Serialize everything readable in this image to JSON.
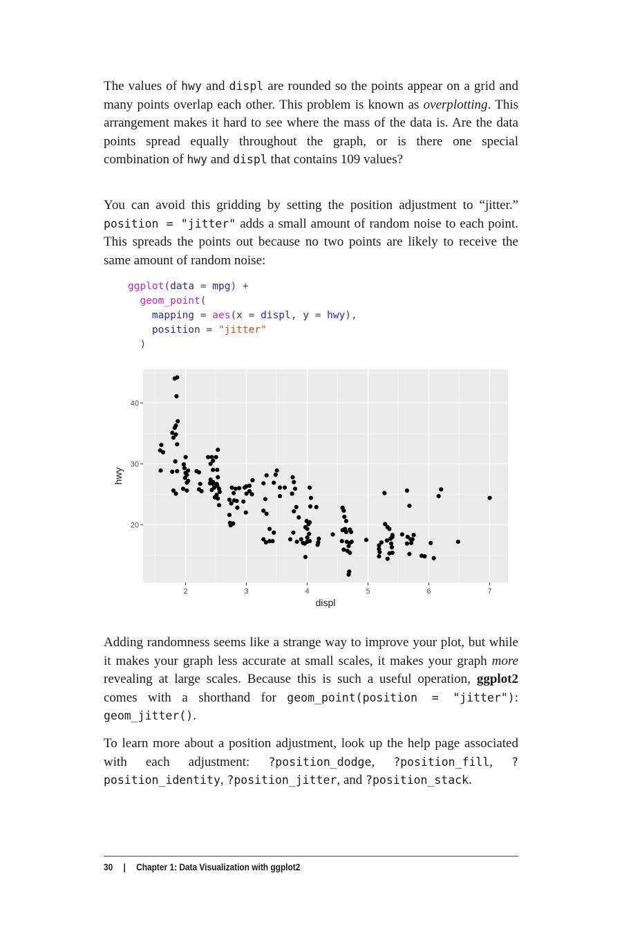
{
  "paragraphs": {
    "p1": {
      "t1": "The values of ",
      "c1": "hwy",
      "t2": " and ",
      "c2": "displ",
      "t3": " are rounded so the points appear on a grid and many points overlap each other. This problem is known as ",
      "em1": "overplotting",
      "t4": ". This arrangement makes it hard to see where the mass of the data is. Are the data points spread equally throughout the graph, or is there one special combination of ",
      "c3": "hwy",
      "t5": " and ",
      "c4": "displ",
      "t6": " that contains 109 values?"
    },
    "p2": {
      "t1": "You can avoid this gridding by setting the position adjustment to “jitter.” ",
      "c1": "position = \"jitter\"",
      "t2": " adds a small amount of random noise to each point. This spreads the points out because no two points are likely to receive the same amount of random noise:"
    },
    "p3": {
      "t1": "Adding randomness seems like a strange way to improve your plot, but while it makes your graph less accurate at small scales, it makes your graph ",
      "em1": "more",
      "t2": " revealing at large scales. Because this is such a use­ful operation, ",
      "b1": "ggplot2",
      "t3": " comes with a shorthand for ",
      "c1": "geom_point(position = \"jitter\")",
      "t4": ": ",
      "c2": "geom_jitter()",
      "t5": "."
    },
    "p4": {
      "t1": "To learn more about a position adjustment, look up the help page associated with each adjustment: ",
      "c1": "?position_dodge",
      "t2": ", ",
      "c2": "?position_fill",
      "t3": ", ",
      "c3": "?position_identity",
      "t4": ", ",
      "c4": "?position_jitter",
      "t5": ", and ",
      "c5": "?position_stack",
      "t6": "."
    }
  },
  "code": {
    "l1_fn": "ggplot",
    "l1_a": "(",
    "l1_b": "data",
    "l1_c": " = ",
    "l1_d": "mpg",
    "l1_e": ") +",
    "l2_fn": "geom_point",
    "l2_a": "(",
    "l3_a": "mapping",
    "l3_b": " = ",
    "l3_fn": "aes",
    "l3_c": "(",
    "l3_d": "x",
    "l3_e": " = ",
    "l3_f": "displ",
    "l3_g": ", ",
    "l3_h": "y",
    "l3_i": " = ",
    "l3_j": "hwy",
    "l3_k": "),",
    "l4_a": "position",
    "l4_b": " = ",
    "l4_s": "\"jitter\"",
    "l5": ")"
  },
  "chart_data": {
    "type": "scatter",
    "xlabel": "displ",
    "ylabel": "hwy",
    "xlim": [
      1.3,
      7.3
    ],
    "ylim": [
      10.5,
      45.5
    ],
    "xticks": [
      2,
      3,
      4,
      5,
      6,
      7
    ],
    "yticks": [
      20,
      30,
      40
    ],
    "xminor": [
      1.5,
      2.5,
      3.5,
      4.5,
      5.5,
      6.5
    ],
    "yminor": [
      15,
      25,
      35,
      45
    ],
    "grid": true,
    "background": "#ebebeb",
    "point_color": "#000000",
    "points": [
      [
        1.82,
        44.0
      ],
      [
        1.86,
        44.2
      ],
      [
        1.85,
        41.1
      ],
      [
        1.87,
        37.0
      ],
      [
        1.84,
        36.3
      ],
      [
        1.82,
        35.9
      ],
      [
        1.78,
        35.1
      ],
      [
        1.84,
        34.8
      ],
      [
        1.8,
        34.3
      ],
      [
        1.86,
        33.2
      ],
      [
        1.6,
        33.1
      ],
      [
        1.58,
        32.2
      ],
      [
        1.63,
        31.9
      ],
      [
        1.59,
        28.9
      ],
      [
        1.78,
        28.7
      ],
      [
        1.86,
        28.8
      ],
      [
        1.83,
        30.4
      ],
      [
        1.8,
        25.6
      ],
      [
        1.84,
        25.1
      ],
      [
        1.97,
        29.9
      ],
      [
        2.0,
        31.1
      ],
      [
        1.98,
        29.3
      ],
      [
        2.04,
        28.9
      ],
      [
        2.0,
        28.5
      ],
      [
        1.99,
        27.7
      ],
      [
        2.02,
        26.9
      ],
      [
        1.96,
        25.9
      ],
      [
        2.02,
        25.6
      ],
      [
        2.04,
        27.2
      ],
      [
        2.02,
        28.2
      ],
      [
        2.22,
        28.6
      ],
      [
        2.18,
        28.8
      ],
      [
        2.24,
        26.7
      ],
      [
        2.22,
        25.8
      ],
      [
        2.26,
        25.5
      ],
      [
        2.37,
        31.1
      ],
      [
        2.43,
        31.1
      ],
      [
        2.45,
        30.5
      ],
      [
        2.5,
        31.1
      ],
      [
        2.53,
        32.3
      ],
      [
        2.41,
        30.0
      ],
      [
        2.45,
        29.0
      ],
      [
        2.52,
        29.0
      ],
      [
        2.41,
        27.4
      ],
      [
        2.45,
        26.7
      ],
      [
        2.47,
        26.1
      ],
      [
        2.52,
        26.4
      ],
      [
        2.51,
        26.7
      ],
      [
        2.55,
        25.9
      ],
      [
        2.56,
        25.4
      ],
      [
        2.51,
        24.9
      ],
      [
        2.48,
        24.5
      ],
      [
        2.53,
        24.3
      ],
      [
        2.43,
        25.7
      ],
      [
        2.45,
        27.0
      ],
      [
        2.53,
        27.8
      ],
      [
        2.55,
        23.2
      ],
      [
        2.4,
        26.8
      ],
      [
        2.72,
        24.1
      ],
      [
        2.75,
        23.5
      ],
      [
        2.8,
        24.0
      ],
      [
        2.76,
        26.1
      ],
      [
        2.82,
        25.9
      ],
      [
        2.79,
        25.2
      ],
      [
        2.84,
        23.9
      ],
      [
        2.73,
        20.3
      ],
      [
        2.74,
        19.9
      ],
      [
        2.78,
        20.2
      ],
      [
        2.72,
        21.6
      ],
      [
        2.88,
        26.0
      ],
      [
        2.95,
        23.8
      ],
      [
        2.97,
        26.1
      ],
      [
        3.0,
        26.3
      ],
      [
        3.05,
        26.4
      ],
      [
        3.1,
        27.3
      ],
      [
        3.05,
        25.5
      ],
      [
        3.09,
        25.0
      ],
      [
        3.0,
        25.1
      ],
      [
        2.99,
        22.0
      ],
      [
        2.85,
        22.8
      ],
      [
        3.28,
        26.8
      ],
      [
        3.33,
        28.1
      ],
      [
        3.31,
        24.2
      ],
      [
        3.28,
        22.3
      ],
      [
        3.33,
        21.8
      ],
      [
        3.28,
        17.6
      ],
      [
        3.32,
        17.1
      ],
      [
        3.38,
        17.3
      ],
      [
        3.43,
        17.3
      ],
      [
        3.38,
        19.3
      ],
      [
        3.45,
        18.7
      ],
      [
        3.5,
        28.9
      ],
      [
        3.48,
        28.2
      ],
      [
        3.45,
        26.9
      ],
      [
        3.55,
        26.1
      ],
      [
        3.63,
        26.1
      ],
      [
        3.55,
        24.7
      ],
      [
        3.76,
        27.8
      ],
      [
        3.78,
        27.0
      ],
      [
        3.8,
        25.9
      ],
      [
        3.75,
        25.1
      ],
      [
        3.82,
        22.9
      ],
      [
        3.78,
        22.2
      ],
      [
        3.86,
        21.2
      ],
      [
        3.77,
        18.7
      ],
      [
        3.72,
        17.6
      ],
      [
        3.83,
        17.2
      ],
      [
        3.93,
        17.0
      ],
      [
        3.9,
        17.6
      ],
      [
        3.96,
        16.9
      ],
      [
        4.0,
        17.2
      ],
      [
        4.0,
        17.9
      ],
      [
        4.04,
        17.3
      ],
      [
        4.03,
        18.5
      ],
      [
        4.0,
        19.3
      ],
      [
        3.97,
        19.6
      ],
      [
        4.02,
        20.1
      ],
      [
        4.04,
        20.4
      ],
      [
        3.99,
        20.6
      ],
      [
        4.04,
        26.1
      ],
      [
        4.06,
        24.4
      ],
      [
        4.05,
        23.0
      ],
      [
        4.15,
        22.9
      ],
      [
        3.97,
        14.7
      ],
      [
        4.19,
        17.7
      ],
      [
        4.18,
        17.1
      ],
      [
        4.17,
        16.7
      ],
      [
        4.42,
        18.4
      ],
      [
        4.58,
        22.8
      ],
      [
        4.6,
        22.3
      ],
      [
        4.61,
        21.3
      ],
      [
        4.64,
        20.6
      ],
      [
        4.62,
        19.3
      ],
      [
        4.58,
        19.1
      ],
      [
        4.64,
        18.8
      ],
      [
        4.7,
        19.2
      ],
      [
        4.72,
        18.8
      ],
      [
        4.57,
        17.3
      ],
      [
        4.65,
        17.2
      ],
      [
        4.7,
        17.0
      ],
      [
        4.73,
        17.2
      ],
      [
        4.68,
        16.5
      ],
      [
        4.6,
        15.9
      ],
      [
        4.66,
        15.7
      ],
      [
        4.7,
        15.4
      ],
      [
        4.69,
        12.3
      ],
      [
        4.68,
        11.8
      ],
      [
        4.97,
        17.5
      ],
      [
        5.18,
        16.6
      ],
      [
        5.18,
        16.0
      ],
      [
        5.19,
        15.5
      ],
      [
        5.18,
        14.8
      ],
      [
        5.22,
        17.1
      ],
      [
        5.28,
        20.1
      ],
      [
        5.32,
        19.6
      ],
      [
        5.35,
        19.3
      ],
      [
        5.27,
        25.2
      ],
      [
        5.31,
        17.4
      ],
      [
        5.37,
        17.7
      ],
      [
        5.38,
        16.9
      ],
      [
        5.4,
        18.3
      ],
      [
        5.4,
        18.0
      ],
      [
        5.39,
        16.3
      ],
      [
        5.35,
        15.3
      ],
      [
        5.4,
        15.4
      ],
      [
        5.32,
        14.4
      ],
      [
        5.56,
        18.4
      ],
      [
        5.64,
        25.6
      ],
      [
        5.68,
        23.1
      ],
      [
        5.65,
        18.0
      ],
      [
        5.7,
        17.6
      ],
      [
        5.73,
        17.6
      ],
      [
        5.75,
        18.3
      ],
      [
        5.71,
        17.0
      ],
      [
        5.64,
        16.9
      ],
      [
        5.68,
        15.2
      ],
      [
        5.88,
        14.9
      ],
      [
        5.93,
        14.8
      ],
      [
        6.03,
        17.0
      ],
      [
        6.08,
        14.5
      ],
      [
        6.16,
        24.7
      ],
      [
        6.2,
        25.8
      ],
      [
        6.48,
        17.2
      ],
      [
        7.0,
        24.4
      ]
    ]
  },
  "footer": {
    "page_number": "30",
    "separator": "|",
    "chapter": "Chapter 1: Data Visualization with ggplot2"
  }
}
